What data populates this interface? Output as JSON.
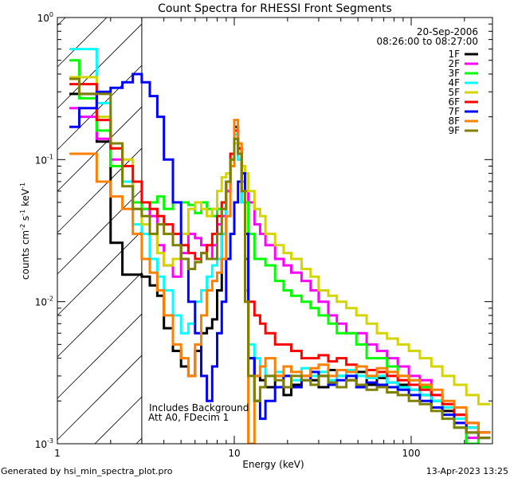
{
  "chart_data": {
    "type": "line",
    "title": "Count Spectra for RHESSI Front Segments",
    "xlabel": "Energy (keV)",
    "ylabel": "counts cm-2 s-1 keV-1",
    "ylabel_parts": {
      "base": "counts cm",
      "e1": "-2",
      "s": " s",
      "e2": "-1",
      "k": " keV",
      "e3": "-1"
    },
    "xscale": "log",
    "yscale": "log",
    "xlim": [
      1,
      288
    ],
    "ylim": [
      0.001,
      1
    ],
    "x_ticks": [
      {
        "value": 1,
        "label": "1"
      },
      {
        "value": 10,
        "label": "10"
      },
      {
        "value": 100,
        "label": "100"
      }
    ],
    "y_ticks": [
      {
        "value": 1,
        "base": "10",
        "exp": "0"
      },
      {
        "value": 0.1,
        "base": "10",
        "exp": "-1"
      },
      {
        "value": 0.01,
        "base": "10",
        "exp": "-2"
      },
      {
        "value": 0.001,
        "base": "10",
        "exp": "-3"
      }
    ],
    "hatched_region_keV": [
      1,
      3
    ],
    "date": "20-Sep-2006",
    "time_range": "08:26:00 to 08:27:00",
    "annotations": [
      "Includes Background",
      "Att A0, FDecim 1"
    ],
    "legend_placement": "top-right",
    "energy_edges": [
      1.17,
      1.33,
      1.67,
      2.0,
      2.33,
      2.67,
      3.0,
      3.33,
      3.67,
      4.0,
      4.5,
      5.0,
      5.5,
      6.0,
      6.5,
      7.0,
      7.5,
      8.0,
      8.5,
      9.0,
      9.5,
      10.0,
      10.5,
      11.0,
      11.5,
      12.0,
      13,
      14,
      15,
      17,
      19,
      21,
      24,
      27,
      30,
      34,
      38,
      43,
      49,
      56,
      64,
      73,
      84,
      97,
      112,
      130,
      150,
      175,
      205,
      240,
      280
    ],
    "series": [
      {
        "name": "1F",
        "color": "#000000",
        "values": [
          0.29,
          0.29,
          0.134,
          0.026,
          0.0155,
          0.0155,
          0.015,
          0.013,
          0.011,
          0.0065,
          0.0045,
          0.0035,
          0.003,
          0.0045,
          0.006,
          0.0065,
          0.0075,
          0.012,
          0.03,
          0.06,
          0.1,
          0.17,
          0.12,
          0.05,
          0.012,
          0.004,
          0.003,
          0.0028,
          0.0025,
          0.003,
          0.0022,
          0.0026,
          0.003,
          0.0028,
          0.0025,
          0.0033,
          0.003,
          0.0028,
          0.0032,
          0.0026,
          0.0029,
          0.0027,
          0.0026,
          0.0024,
          0.0022,
          0.002,
          0.0017,
          0.0016,
          0.0013,
          0.0012
        ]
      },
      {
        "name": "2F",
        "color": "#ff00ff",
        "values": [
          0.23,
          0.2,
          0.14,
          0.1,
          0.07,
          0.05,
          0.045,
          0.04,
          0.025,
          0.018,
          0.015,
          0.022,
          0.03,
          0.028,
          0.025,
          0.02,
          0.025,
          0.035,
          0.04,
          0.06,
          0.09,
          0.14,
          0.1,
          0.07,
          0.06,
          0.05,
          0.035,
          0.03,
          0.025,
          0.02,
          0.018,
          0.016,
          0.014,
          0.012,
          0.01,
          0.008,
          0.007,
          0.006,
          0.006,
          0.005,
          0.0045,
          0.004,
          0.0035,
          0.003,
          0.0028,
          0.0022,
          0.0018,
          0.0014,
          0.0011,
          0.0012
        ]
      },
      {
        "name": "3F",
        "color": "#00ff00",
        "values": [
          0.5,
          0.27,
          0.16,
          0.09,
          0.07,
          0.05,
          0.045,
          0.05,
          0.055,
          0.045,
          0.05,
          0.05,
          0.048,
          0.042,
          0.05,
          0.045,
          0.04,
          0.045,
          0.05,
          0.07,
          0.1,
          0.15,
          0.11,
          0.07,
          0.05,
          0.03,
          0.02,
          0.02,
          0.018,
          0.014,
          0.012,
          0.011,
          0.01,
          0.009,
          0.008,
          0.007,
          0.006,
          0.006,
          0.005,
          0.004,
          0.004,
          0.0035,
          0.003,
          0.0028,
          0.0025,
          0.002,
          0.0016,
          0.0013,
          0.001,
          0.0011
        ]
      },
      {
        "name": "4F",
        "color": "#00ffff",
        "values": [
          0.6,
          0.6,
          0.25,
          0.13,
          0.07,
          0.035,
          0.03,
          0.02,
          0.015,
          0.012,
          0.008,
          0.006,
          0.007,
          0.01,
          0.012,
          0.015,
          0.018,
          0.02,
          0.03,
          0.07,
          0.1,
          0.15,
          0.1,
          0.05,
          0.012,
          0.005,
          0.004,
          0.0035,
          0.003,
          0.0032,
          0.003,
          0.0028,
          0.0034,
          0.003,
          0.0032,
          0.0028,
          0.003,
          0.0033,
          0.003,
          0.0029,
          0.003,
          0.0027,
          0.0025,
          0.0024,
          0.0022,
          0.002,
          0.0018,
          0.0015,
          0.0013,
          0.0012
        ]
      },
      {
        "name": "5F",
        "color": "#d4d400",
        "values": [
          0.38,
          0.38,
          0.2,
          0.12,
          0.1,
          0.045,
          0.035,
          0.03,
          0.022,
          0.018,
          0.02,
          0.03,
          0.045,
          0.05,
          0.045,
          0.04,
          0.045,
          0.06,
          0.075,
          0.08,
          0.1,
          0.13,
          0.11,
          0.09,
          0.08,
          0.06,
          0.045,
          0.04,
          0.03,
          0.025,
          0.022,
          0.02,
          0.017,
          0.015,
          0.012,
          0.011,
          0.01,
          0.009,
          0.008,
          0.007,
          0.006,
          0.0055,
          0.005,
          0.0045,
          0.004,
          0.0035,
          0.003,
          0.0026,
          0.0022,
          0.0019
        ]
      },
      {
        "name": "6F",
        "color": "#ff0000",
        "values": [
          0.34,
          0.34,
          0.19,
          0.12,
          0.09,
          0.07,
          0.05,
          0.045,
          0.04,
          0.035,
          0.03,
          0.025,
          0.022,
          0.02,
          0.022,
          0.025,
          0.03,
          0.04,
          0.05,
          0.07,
          0.11,
          0.16,
          0.12,
          0.06,
          0.02,
          0.01,
          0.008,
          0.007,
          0.006,
          0.005,
          0.005,
          0.0045,
          0.004,
          0.004,
          0.0042,
          0.0038,
          0.004,
          0.0036,
          0.0035,
          0.0033,
          0.0032,
          0.003,
          0.0028,
          0.0026,
          0.0024,
          0.0022,
          0.0019,
          0.0016,
          0.0014,
          0.0012
        ]
      },
      {
        "name": "7F",
        "color": "#0000ff",
        "values": [
          0.17,
          0.23,
          0.3,
          0.32,
          0.35,
          0.4,
          0.35,
          0.28,
          0.2,
          0.1,
          0.05,
          0.02,
          0.01,
          0.006,
          0.003,
          0.002,
          0.0035,
          0.006,
          0.01,
          0.02,
          0.03,
          0.05,
          0.07,
          0.08,
          0.03,
          0.004,
          0.002,
          0.0015,
          0.002,
          0.0025,
          0.003,
          0.0025,
          0.0028,
          0.0032,
          0.003,
          0.0026,
          0.0028,
          0.003,
          0.0025,
          0.0027,
          0.0026,
          0.0025,
          0.0024,
          0.0022,
          0.002,
          0.0018,
          0.0016,
          0.0014,
          0.0012,
          0.0011
        ]
      },
      {
        "name": "8F",
        "color": "#ff8000",
        "values": [
          0.11,
          0.11,
          0.07,
          0.055,
          0.045,
          0.03,
          0.02,
          0.016,
          0.012,
          0.008,
          0.005,
          0.004,
          0.003,
          0.005,
          0.008,
          0.012,
          0.014,
          0.016,
          0.02,
          0.04,
          0.09,
          0.19,
          0.13,
          0.06,
          0.01,
          0.001,
          0.003,
          0.0035,
          0.004,
          0.003,
          0.0035,
          0.0032,
          0.003,
          0.0034,
          0.0036,
          0.003,
          0.0033,
          0.0032,
          0.0035,
          0.003,
          0.0034,
          0.0032,
          0.003,
          0.0028,
          0.0026,
          0.0024,
          0.002,
          0.0018,
          0.0014,
          0.0012
        ]
      },
      {
        "name": "9F",
        "color": "#808000",
        "values": [
          0.37,
          0.29,
          0.29,
          0.13,
          0.065,
          0.045,
          0.04,
          0.03,
          0.035,
          0.03,
          0.025,
          0.02,
          0.017,
          0.019,
          0.022,
          0.02,
          0.02,
          0.03,
          0.045,
          0.07,
          0.1,
          0.14,
          0.11,
          0.06,
          0.01,
          0.003,
          0.002,
          0.0025,
          0.003,
          0.0028,
          0.0025,
          0.003,
          0.0028,
          0.0026,
          0.003,
          0.0027,
          0.0025,
          0.0028,
          0.0026,
          0.0024,
          0.0025,
          0.0023,
          0.0022,
          0.002,
          0.0019,
          0.0017,
          0.0015,
          0.0013,
          0.0012,
          0.0011
        ]
      }
    ]
  },
  "footer": {
    "generated_by": "Generated by hsi_min_spectra_plot.pro",
    "timestamp": "13-Apr-2023 13:25"
  }
}
